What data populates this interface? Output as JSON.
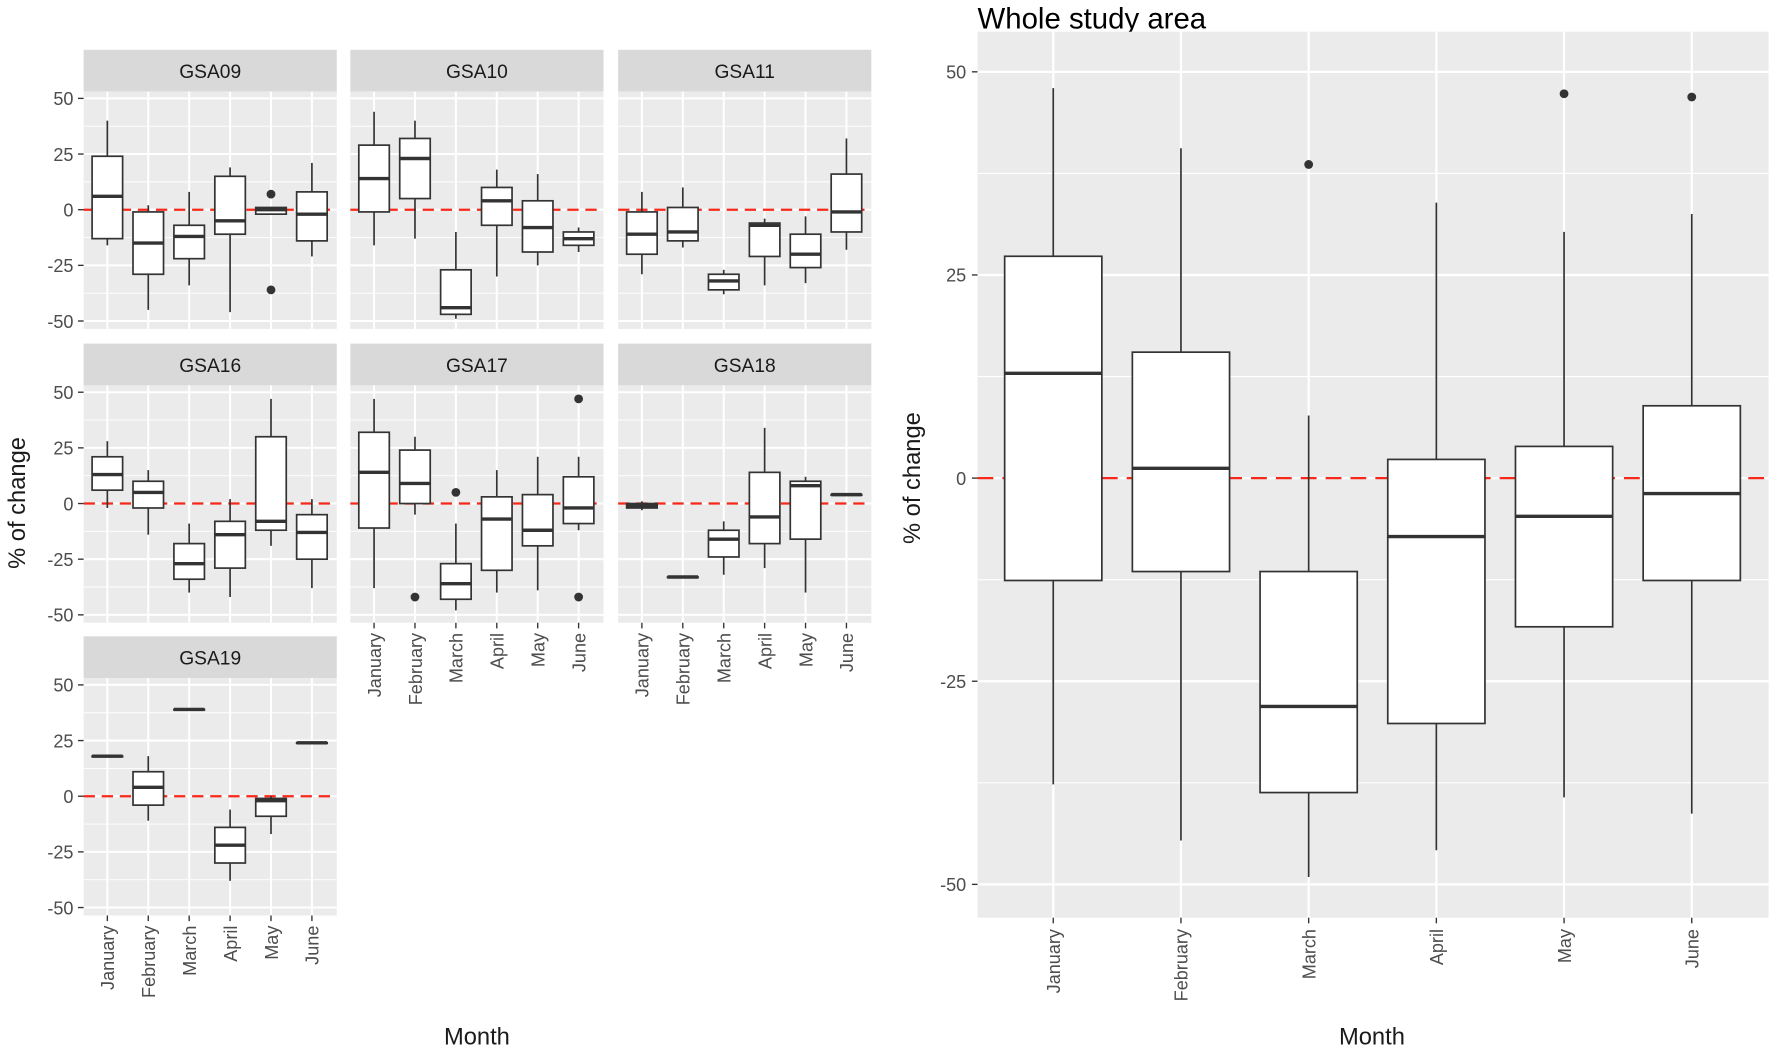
{
  "chart_data": [
    {
      "type": "boxplot",
      "title": "",
      "layout": "facet-grid",
      "xlabel": "Month",
      "ylabel": "% of change",
      "ylim": [
        -55,
        65
      ],
      "yticks": [
        50,
        25,
        0,
        -25,
        -50
      ],
      "ytick_labels": [
        "50",
        "25",
        "0",
        "-25",
        "-50"
      ],
      "categories": [
        "January",
        "February",
        "March",
        "April",
        "May",
        "June"
      ],
      "reference_line": {
        "y": 0,
        "color": "#F8291B",
        "style": "dashed"
      },
      "panels": [
        {
          "name": "GSA09",
          "boxes": [
            {
              "min": -16,
              "q1": -13,
              "median": 6,
              "q3": 24,
              "max": 40,
              "outliers": []
            },
            {
              "min": -45,
              "q1": -29,
              "median": -15,
              "q3": -1,
              "max": 2,
              "outliers": []
            },
            {
              "min": -34,
              "q1": -22,
              "median": -12,
              "q3": -7,
              "max": 8,
              "outliers": []
            },
            {
              "min": -46,
              "q1": -11,
              "median": -5,
              "q3": 15,
              "max": 19,
              "outliers": []
            },
            {
              "min": -2,
              "q1": -2,
              "median": 0,
              "q3": 1,
              "max": 1,
              "outliers": [
                7,
                -36
              ]
            },
            {
              "min": -21,
              "q1": -14,
              "median": -2,
              "q3": 8,
              "max": 21,
              "outliers": []
            }
          ]
        },
        {
          "name": "GSA10",
          "boxes": [
            {
              "min": -16,
              "q1": -1,
              "median": 14,
              "q3": 29,
              "max": 44,
              "outliers": []
            },
            {
              "min": -13,
              "q1": 5,
              "median": 23,
              "q3": 32,
              "max": 40,
              "outliers": []
            },
            {
              "min": -49,
              "q1": -47,
              "median": -44,
              "q3": -27,
              "max": -10,
              "outliers": []
            },
            {
              "min": -30,
              "q1": -7,
              "median": 4,
              "q3": 10,
              "max": 18,
              "outliers": []
            },
            {
              "min": -25,
              "q1": -19,
              "median": -8,
              "q3": 4,
              "max": 16,
              "outliers": []
            },
            {
              "min": -19,
              "q1": -16,
              "median": -13,
              "q3": -10,
              "max": -8,
              "outliers": []
            }
          ]
        },
        {
          "name": "GSA11",
          "boxes": [
            {
              "min": -29,
              "q1": -20,
              "median": -11,
              "q3": -1,
              "max": 8,
              "outliers": []
            },
            {
              "min": -17,
              "q1": -14,
              "median": -10,
              "q3": 1,
              "max": 10,
              "outliers": []
            },
            {
              "min": -38,
              "q1": -36,
              "median": -32,
              "q3": -29,
              "max": -27,
              "outliers": []
            },
            {
              "min": -34,
              "q1": -21,
              "median": -7,
              "q3": -6,
              "max": -4,
              "outliers": []
            },
            {
              "min": -33,
              "q1": -26,
              "median": -20,
              "q3": -11,
              "max": -3,
              "outliers": []
            },
            {
              "min": -18,
              "q1": -10,
              "median": -1,
              "q3": 16,
              "max": 32,
              "outliers": []
            }
          ]
        },
        {
          "name": "GSA16",
          "boxes": [
            {
              "min": -2,
              "q1": 6,
              "median": 13,
              "q3": 21,
              "max": 28,
              "outliers": []
            },
            {
              "min": -14,
              "q1": -2,
              "median": 5,
              "q3": 10,
              "max": 15,
              "outliers": []
            },
            {
              "min": -40,
              "q1": -34,
              "median": -27,
              "q3": -18,
              "max": -9,
              "outliers": []
            },
            {
              "min": -42,
              "q1": -29,
              "median": -14,
              "q3": -8,
              "max": 2,
              "outliers": []
            },
            {
              "min": -19,
              "q1": -12,
              "median": -8,
              "q3": 30,
              "max": 47,
              "outliers": []
            },
            {
              "min": -38,
              "q1": -25,
              "median": -13,
              "q3": -5,
              "max": 2,
              "outliers": []
            }
          ]
        },
        {
          "name": "GSA17",
          "boxes": [
            {
              "min": -38,
              "q1": -11,
              "median": 14,
              "q3": 32,
              "max": 47,
              "outliers": []
            },
            {
              "min": -5,
              "q1": 0,
              "median": 9,
              "q3": 24,
              "max": 30,
              "outliers": [
                -42
              ]
            },
            {
              "min": -48,
              "q1": -43,
              "median": -36,
              "q3": -27,
              "max": -9,
              "outliers": [
                5
              ]
            },
            {
              "min": -40,
              "q1": -30,
              "median": -7,
              "q3": 3,
              "max": 15,
              "outliers": []
            },
            {
              "min": -39,
              "q1": -19,
              "median": -12,
              "q3": 4,
              "max": 21,
              "outliers": []
            },
            {
              "min": -12,
              "q1": -9,
              "median": -2,
              "q3": 12,
              "max": 21,
              "outliers": [
                47,
                -42
              ]
            }
          ]
        },
        {
          "name": "GSA18",
          "boxes": [
            {
              "min": -3,
              "q1": -2,
              "median": -1,
              "q3": 0,
              "max": 1,
              "outliers": []
            },
            {
              "min": -33,
              "q1": -33,
              "median": -33,
              "q3": -33,
              "max": -33,
              "outliers": []
            },
            {
              "min": -32,
              "q1": -24,
              "median": -16,
              "q3": -12,
              "max": -8,
              "outliers": []
            },
            {
              "min": -29,
              "q1": -18,
              "median": -6,
              "q3": 14,
              "max": 34,
              "outliers": []
            },
            {
              "min": -40,
              "q1": -16,
              "median": 8,
              "q3": 10,
              "max": 12,
              "outliers": []
            },
            {
              "min": 4,
              "q1": 4,
              "median": 4,
              "q3": 4,
              "max": 4,
              "outliers": []
            }
          ]
        },
        {
          "name": "GSA19",
          "boxes": [
            {
              "min": 18,
              "q1": 18,
              "median": 18,
              "q3": 18,
              "max": 18,
              "outliers": []
            },
            {
              "min": -11,
              "q1": -4,
              "median": 4,
              "q3": 11,
              "max": 18,
              "outliers": []
            },
            {
              "min": 39,
              "q1": 39,
              "median": 39,
              "q3": 39,
              "max": 39,
              "outliers": []
            },
            {
              "min": -38,
              "q1": -30,
              "median": -22,
              "q3": -14,
              "max": -6,
              "outliers": []
            },
            {
              "min": -17,
              "q1": -9,
              "median": -2,
              "q3": -1,
              "max": 0,
              "outliers": []
            },
            {
              "min": 24,
              "q1": 24,
              "median": 24,
              "q3": 24,
              "max": 24,
              "outliers": []
            }
          ]
        }
      ]
    },
    {
      "type": "boxplot",
      "title": "Whole study area",
      "xlabel": "Month",
      "ylabel": "% of change",
      "ylim": [
        -54,
        55
      ],
      "yticks": [
        50,
        25,
        0,
        -25,
        -50
      ],
      "ytick_labels": [
        "50",
        "25",
        "0",
        "-25",
        "-50"
      ],
      "categories": [
        "January",
        "February",
        "March",
        "April",
        "May",
        "June"
      ],
      "reference_line": {
        "y": 0,
        "color": "#F8291B",
        "style": "dashed"
      },
      "boxes": [
        {
          "min": -37.7,
          "q1": -12.6,
          "median": 12.9,
          "q3": 27.3,
          "max": 48.0,
          "outliers": []
        },
        {
          "min": -44.6,
          "q1": -11.5,
          "median": 1.2,
          "q3": 15.5,
          "max": 40.6,
          "outliers": []
        },
        {
          "min": -49.1,
          "q1": -38.7,
          "median": -28.1,
          "q3": -11.5,
          "max": 7.7,
          "outliers": [
            38.6
          ]
        },
        {
          "min": -45.8,
          "q1": -30.2,
          "median": -7.2,
          "q3": 2.3,
          "max": 33.9,
          "outliers": []
        },
        {
          "min": -39.3,
          "q1": -18.3,
          "median": -4.7,
          "q3": 3.9,
          "max": 30.3,
          "outliers": [
            47.3
          ]
        },
        {
          "min": -41.3,
          "q1": -12.6,
          "median": -1.9,
          "q3": 8.9,
          "max": 32.5,
          "outliers": [
            46.9
          ]
        }
      ]
    }
  ],
  "colors": {
    "panel_bg": "#EBEBEB",
    "strip_bg": "#D9D9D9",
    "grid": "#FFFFFF",
    "box_line": "#333333",
    "reference": "#F8291B"
  }
}
